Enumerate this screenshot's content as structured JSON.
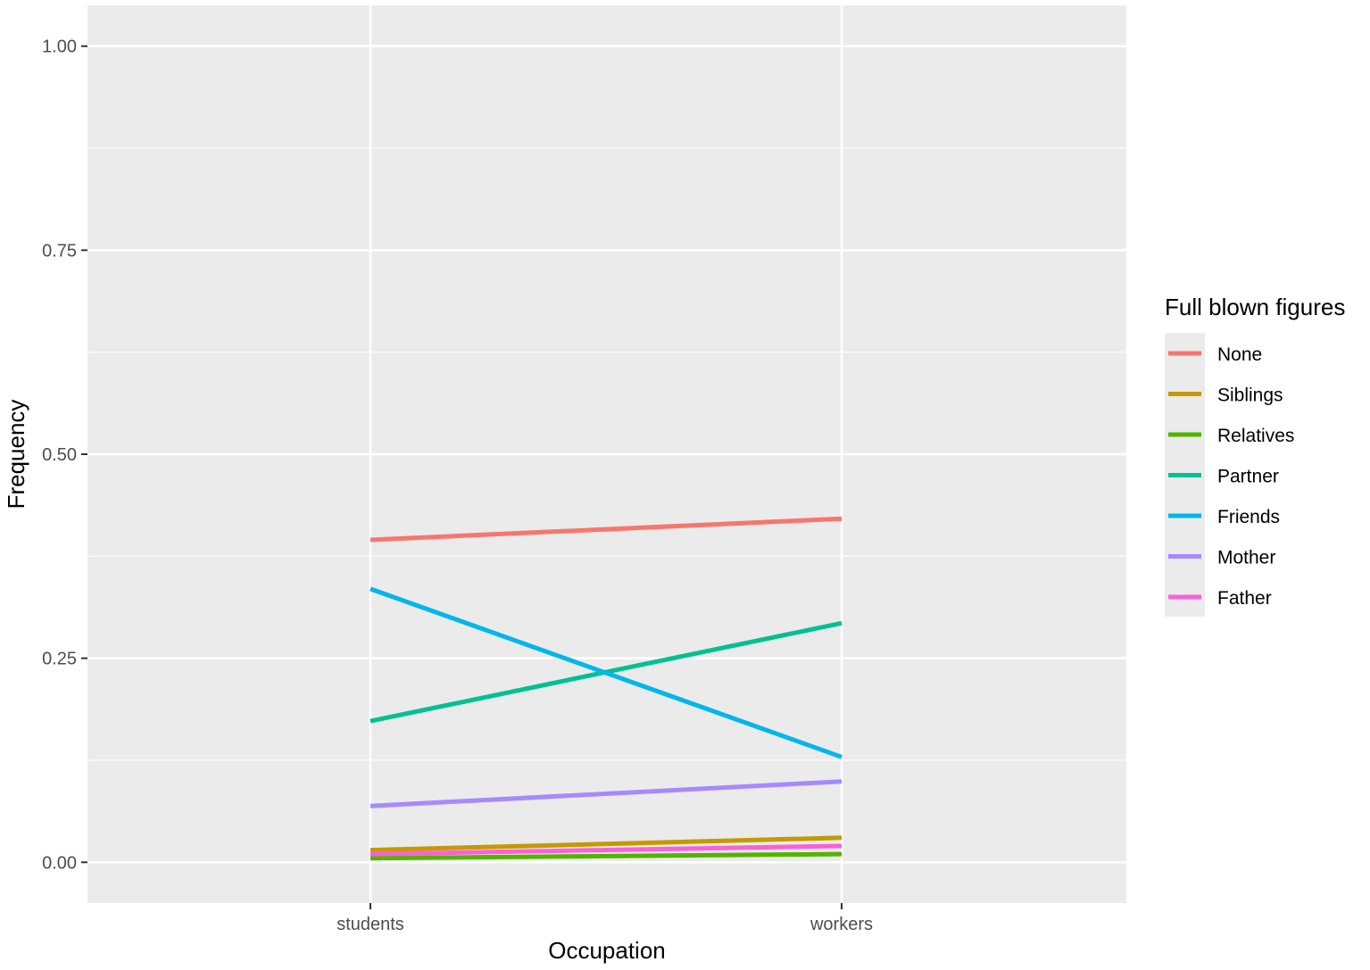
{
  "chart_data": {
    "type": "line",
    "title": "",
    "xlabel": "Occupation",
    "ylabel": "Frequency",
    "categories": [
      "students",
      "workers"
    ],
    "ylim": [
      -0.05,
      1.05
    ],
    "yticks": [
      "0.00",
      "0.25",
      "0.50",
      "0.75",
      "1.00"
    ],
    "grid": true,
    "legend": {
      "title": "Full blown figures",
      "placement": "right"
    },
    "series": [
      {
        "name": "None",
        "color": "#F8766D",
        "values": [
          0.395,
          0.421
        ]
      },
      {
        "name": "Siblings",
        "color": "#C49A00",
        "values": [
          0.015,
          0.03
        ]
      },
      {
        "name": "Relatives",
        "color": "#53B400",
        "values": [
          0.005,
          0.01
        ]
      },
      {
        "name": "Partner",
        "color": "#00C094",
        "values": [
          0.173,
          0.293
        ]
      },
      {
        "name": "Friends",
        "color": "#00B6EB",
        "values": [
          0.335,
          0.129
        ]
      },
      {
        "name": "Mother",
        "color": "#A58AFF",
        "values": [
          0.069,
          0.099
        ]
      },
      {
        "name": "Father",
        "color": "#FB61D7",
        "values": [
          0.01,
          0.02
        ]
      }
    ]
  }
}
